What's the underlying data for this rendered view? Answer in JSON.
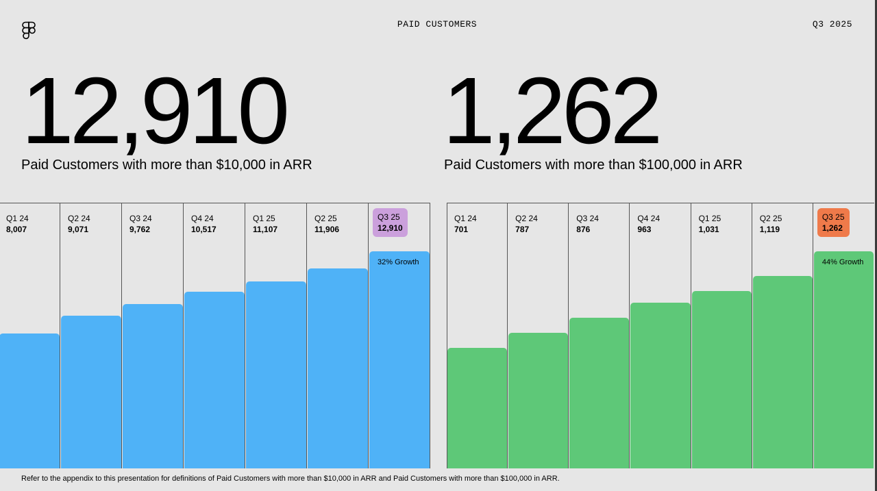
{
  "header": {
    "title": "PAID CUSTOMERS",
    "period": "Q3 2025"
  },
  "left": {
    "big_number": "12,910",
    "subtitle": "Paid Customers with more than $10,000 in ARR"
  },
  "right": {
    "big_number": "1,262",
    "subtitle": "Paid Customers with more than $100,000 in ARR"
  },
  "footnote": "Refer to the appendix to this presentation for definitions of Paid Customers with more than $10,000 in ARR and Paid Customers with more than $100,000 in ARR.",
  "colors": {
    "blue": "#4fb2f7",
    "green": "#5ec878",
    "purple": "#cba0dc",
    "orange": "#ef7a4a",
    "background": "#e6e6e6"
  },
  "chart_data": [
    {
      "type": "bar",
      "title": "Paid Customers with more than $10,000 in ARR",
      "categories": [
        "Q1 24",
        "Q2 24",
        "Q3 24",
        "Q4 24",
        "Q1 25",
        "Q2 25",
        "Q3 25"
      ],
      "values": [
        8007,
        9071,
        9762,
        10517,
        11107,
        11906,
        12910
      ],
      "labels": [
        "8,007",
        "9,071",
        "9,762",
        "10,517",
        "11,107",
        "11,906",
        "12,910"
      ],
      "ylim": [
        0,
        15800
      ],
      "color": "#4fb2f7",
      "highlight_index": 6,
      "highlight_color": "#cba0dc",
      "annotation": "32% Growth"
    },
    {
      "type": "bar",
      "title": "Paid Customers with more than $100,000 in ARR",
      "categories": [
        "Q1 24",
        "Q2 24",
        "Q3 24",
        "Q4 24",
        "Q1 25",
        "Q2 25",
        "Q3 25"
      ],
      "values": [
        701,
        787,
        876,
        963,
        1031,
        1119,
        1262
      ],
      "labels": [
        "701",
        "787",
        "876",
        "963",
        "1,031",
        "1,119",
        "1,262"
      ],
      "ylim": [
        0,
        1545
      ],
      "color": "#5ec878",
      "highlight_index": 6,
      "highlight_color": "#ef7a4a",
      "annotation": "44% Growth"
    }
  ]
}
